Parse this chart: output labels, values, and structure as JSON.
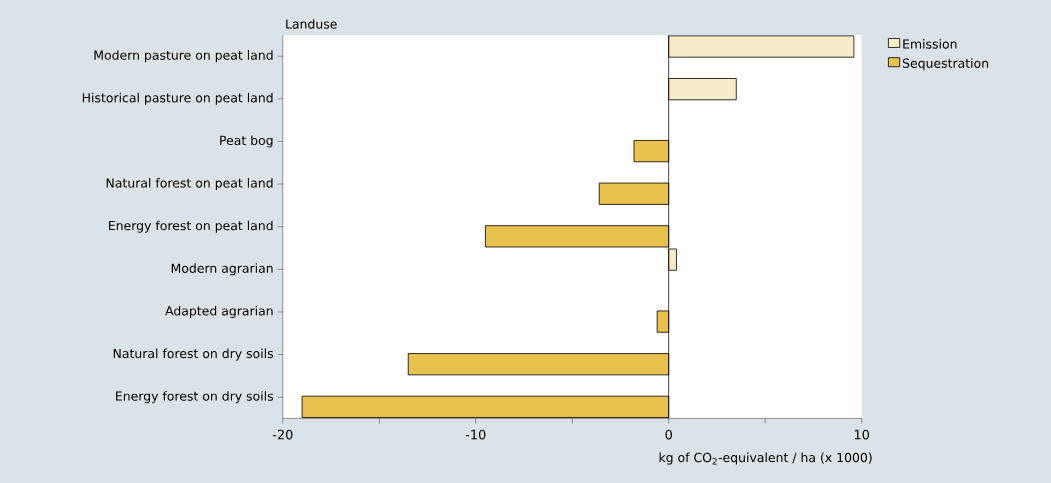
{
  "chart_data": {
    "type": "bar",
    "orientation": "horizontal",
    "ylabel": "Landuse",
    "xlabel": "kg of CO$_{2}$-equivalent / ha (x 1000)",
    "categories": [
      "Modern pasture on peat land",
      "Historical pasture on peat land",
      "Peat bog",
      "Natural forest on peat land",
      "Energy forest on peat land",
      "Modern agrarian",
      "Adapted agrarian",
      "Natural forest on dry soils",
      "Energy forest on dry soils"
    ],
    "series": [
      {
        "name": "Emission",
        "color": "#f8ecc8",
        "values": [
          9.6,
          3.5,
          null,
          null,
          null,
          0.4,
          null,
          null,
          null
        ]
      },
      {
        "name": "Sequestration",
        "color": "#e8c14d",
        "values": [
          null,
          null,
          -1.8,
          -3.6,
          -9.5,
          null,
          -0.6,
          -13.5,
          -19.0
        ]
      }
    ],
    "xlim": [
      -20,
      10
    ],
    "xticks": [
      -20,
      {
        "value": -15,
        "label": null
      },
      -10,
      {
        "value": -5,
        "label": null
      },
      0,
      {
        "value": 5,
        "label": null
      },
      10
    ],
    "ref_lines": [
      {
        "axis": "x",
        "value": 0,
        "color": "#000000"
      }
    ],
    "legend": "top right",
    "grid": false
  }
}
